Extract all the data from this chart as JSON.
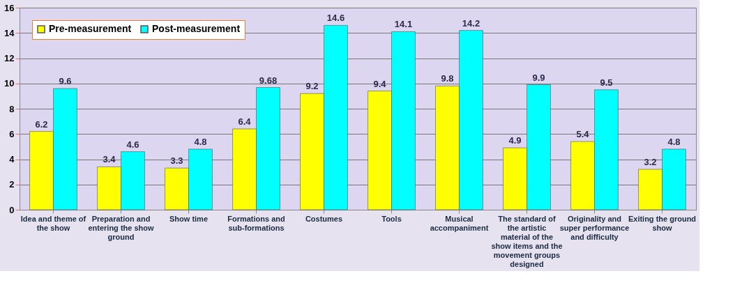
{
  "chart_data": {
    "type": "bar",
    "categories": [
      "Idea and theme of the show",
      "Preparation and entering the show ground",
      "Show time",
      "Formations and sub-formations",
      "Costumes",
      "Tools",
      "Musical accompaniment",
      "The standard of the artistic material of the show items and the movement groups designed",
      "Originality and super performance and difficulty",
      "Exiting the ground show"
    ],
    "series": [
      {
        "name": "Pre-measurement",
        "color": "#ffff00",
        "values": [
          6.2,
          3.4,
          3.3,
          6.4,
          9.2,
          9.4,
          9.8,
          4.9,
          5.4,
          3.2
        ]
      },
      {
        "name": "Post-measurement",
        "color": "#00ffff",
        "values": [
          9.6,
          4.6,
          4.8,
          9.68,
          14.6,
          14.1,
          14.2,
          9.9,
          9.5,
          4.8
        ]
      }
    ],
    "ylim": [
      0,
      16
    ],
    "yticks": [
      0,
      2,
      4,
      6,
      8,
      10,
      12,
      14,
      16
    ],
    "grid": "y",
    "legend": "top left",
    "data_labels": true
  }
}
